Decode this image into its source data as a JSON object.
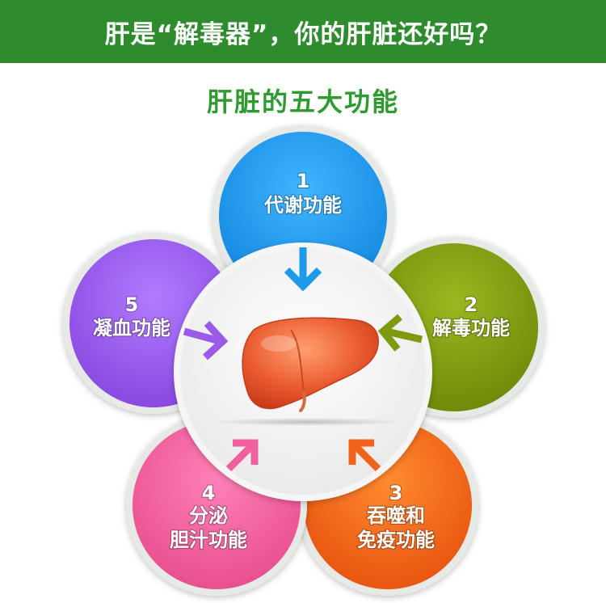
{
  "banner": {
    "title": "肝是“解毒器”，你的肝脏还好吗？"
  },
  "subtitle": "肝脏的五大功能",
  "petals": [
    {
      "num": "1",
      "lines": [
        "代谢功能"
      ],
      "color": "#1e9be8"
    },
    {
      "num": "2",
      "lines": [
        "解毒功能"
      ],
      "color": "#7f9a10"
    },
    {
      "num": "3",
      "lines": [
        "吞噬和",
        "免疫功能"
      ],
      "color": "#f0631a"
    },
    {
      "num": "4",
      "lines": [
        "分泌",
        "胆汁功能"
      ],
      "color": "#f0609e"
    },
    {
      "num": "5",
      "lines": [
        "凝血功能"
      ],
      "color": "#9b5ae8"
    }
  ],
  "colors": {
    "banner": "#2e8b2e",
    "subtitle": "#2f9a2f",
    "liver": "#e8542c"
  }
}
